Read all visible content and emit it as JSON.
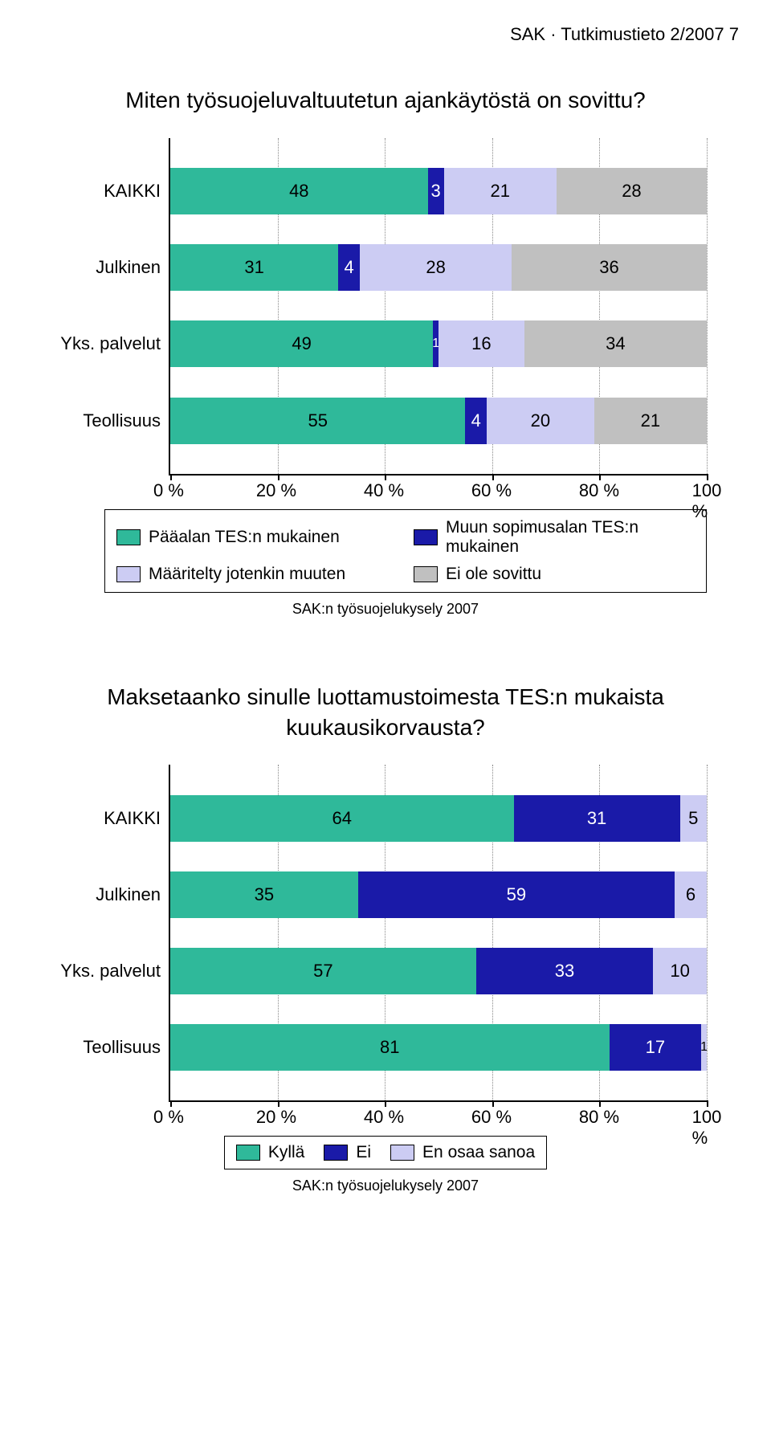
{
  "header": "SAK · Tutkimustieto 2/2007    7",
  "colors": {
    "teal": "#2fb99a",
    "darkblue": "#1a1aa8",
    "lavender": "#ccccf3",
    "gray": "#c0c0c0",
    "grid": "#888888",
    "text": "#000000",
    "bg": "#ffffff"
  },
  "chart1": {
    "title": "Miten työsuojeluvaltuutetun ajankäytöstä on sovittu?",
    "type": "stacked-bar-horizontal",
    "xmin": 0,
    "xmax": 100,
    "xticks": [
      0,
      20,
      40,
      60,
      80,
      100
    ],
    "xtick_labels": [
      "0 %",
      "20 %",
      "40 %",
      "60 %",
      "80 %",
      "100 %"
    ],
    "label_fontsize": 22,
    "bars": [
      {
        "label": "KAIKKI",
        "values": [
          48,
          3,
          21,
          28
        ]
      },
      {
        "label": "Julkinen",
        "values": [
          31,
          4,
          28,
          36
        ]
      },
      {
        "label": "Yks. palvelut",
        "values": [
          49,
          1,
          16,
          34
        ]
      },
      {
        "label": "Teollisuus",
        "values": [
          55,
          4,
          20,
          21
        ]
      }
    ],
    "series": [
      {
        "label": "Pääalan TES:n mukainen",
        "color": "#2fb99a"
      },
      {
        "label": "Muun sopimusalan TES:n mukainen",
        "color": "#1a1aa8"
      },
      {
        "label": "Määritelty jotenkin muuten",
        "color": "#ccccf3"
      },
      {
        "label": "Ei ole sovittu",
        "color": "#c0c0c0"
      }
    ],
    "source": "SAK:n työsuojelukysely 2007"
  },
  "chart2": {
    "title": "Maksetaanko sinulle luottamustoimesta TES:n mukaista kuukausikorvausta?",
    "type": "stacked-bar-horizontal",
    "xmin": 0,
    "xmax": 100,
    "xticks": [
      0,
      20,
      40,
      60,
      80,
      100
    ],
    "xtick_labels": [
      "0 %",
      "20 %",
      "40 %",
      "60 %",
      "80 %",
      "100 %"
    ],
    "label_fontsize": 22,
    "bars": [
      {
        "label": "KAIKKI",
        "values": [
          64,
          31,
          5
        ]
      },
      {
        "label": "Julkinen",
        "values": [
          35,
          59,
          6
        ]
      },
      {
        "label": "Yks. palvelut",
        "values": [
          57,
          33,
          10
        ]
      },
      {
        "label": "Teollisuus",
        "values": [
          81,
          17,
          1
        ]
      }
    ],
    "series": [
      {
        "label": "Kyllä",
        "color": "#2fb99a"
      },
      {
        "label": "Ei",
        "color": "#1a1aa8"
      },
      {
        "label": "En osaa sanoa",
        "color": "#ccccf3"
      }
    ],
    "source": "SAK:n työsuojelukysely 2007"
  }
}
